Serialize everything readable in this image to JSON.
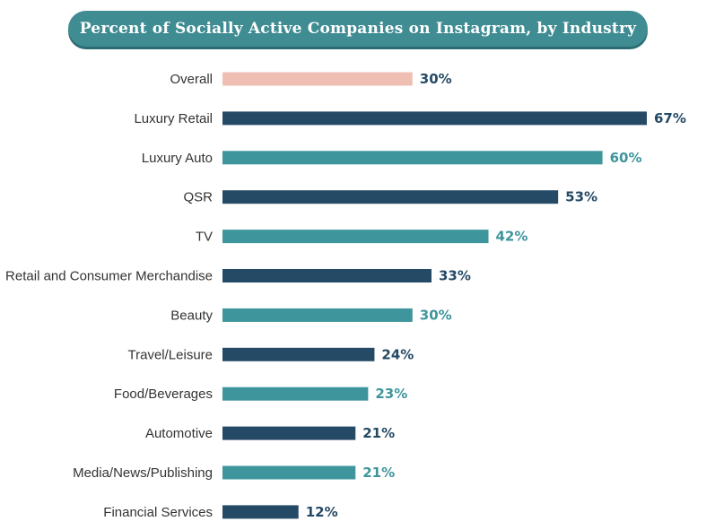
{
  "chart_data": {
    "type": "bar",
    "orientation": "horizontal",
    "title": "Percent of Socially Active Companies on Instagram, by Industry",
    "categories": [
      "Overall",
      "Luxury Retail",
      "Luxury Auto",
      "QSR",
      "TV",
      "Retail and Consumer Merchandise",
      "Beauty",
      "Travel/Leisure",
      "Food/Beverages",
      "Automotive",
      "Media/News/Publishing",
      "Financial Services"
    ],
    "values": [
      30,
      67,
      60,
      53,
      42,
      33,
      30,
      24,
      23,
      21,
      21,
      12
    ],
    "value_labels": [
      "30%",
      "67%",
      "60%",
      "53%",
      "42%",
      "33%",
      "30%",
      "24%",
      "23%",
      "21%",
      "21%",
      "12%"
    ],
    "bar_colors": [
      "#f0bfb4",
      "#254a66",
      "#3e959b",
      "#254a66",
      "#3e959b",
      "#254a66",
      "#3e959b",
      "#254a66",
      "#3e959b",
      "#254a66",
      "#3e959b",
      "#254a66"
    ],
    "label_colors": [
      "#254a66",
      "#254a66",
      "#3e959b",
      "#254a66",
      "#3e959b",
      "#254a66",
      "#3e959b",
      "#254a66",
      "#3e959b",
      "#254a66",
      "#3e959b",
      "#254a66"
    ],
    "xlim": [
      0,
      67
    ],
    "unit": "%"
  }
}
